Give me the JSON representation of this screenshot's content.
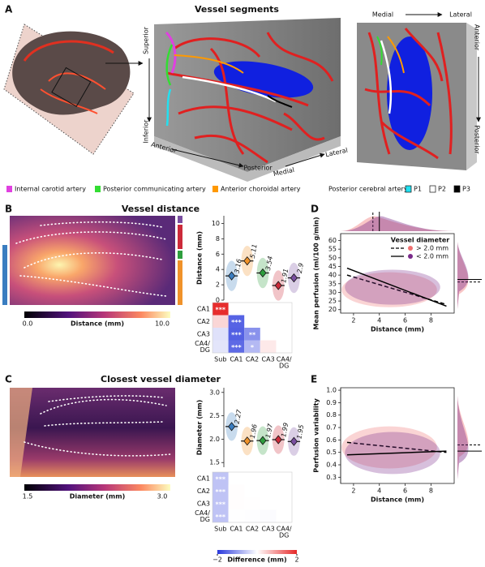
{
  "panel_a": {
    "label": "A",
    "title": "Vessel segments",
    "view1": {
      "superior": "Superior",
      "inferior": "Inferior",
      "anterior": "Anterior",
      "posterior": "Posterior",
      "medial": "Medial",
      "lateral": "Lateral"
    },
    "view2": {
      "medial": "Medial",
      "lateral": "Lateral",
      "anterior": "Anterior",
      "posterior": "Posterior"
    },
    "legend": [
      {
        "name": "Internal carotid artery",
        "color": "#e040e0"
      },
      {
        "name": "Posterior communicating artery",
        "color": "#33dd33"
      },
      {
        "name": "Anterior choroidal artery",
        "color": "#ff9900"
      }
    ],
    "pca_label": "Posterior cerebral artery:",
    "pca_segments": [
      {
        "name": "P1",
        "color": "#22e0f0"
      },
      {
        "name": "P2",
        "color": "#ffffff"
      },
      {
        "name": "P3",
        "color": "#000000"
      }
    ]
  },
  "panel_b": {
    "label": "B",
    "title": "Vessel distance",
    "colorbar": {
      "ticks": [
        "0.0",
        "10.0"
      ],
      "label": "Distance (mm)"
    }
  },
  "panel_c": {
    "label": "C",
    "title": "Closest vessel diameter",
    "colorbar": {
      "ticks": [
        "1.5",
        "3.0"
      ],
      "label": "Diameter (mm)"
    }
  },
  "panel_d": {
    "label": "D"
  },
  "panel_e": {
    "label": "E"
  },
  "chart_data": [
    {
      "type": "strip",
      "ylabel": "Distance (mm)",
      "values": [
        3.16,
        5.11,
        3.54,
        1.91,
        2.9
      ],
      "colors": [
        "#3a7dc0",
        "#f0922a",
        "#2e9e3e",
        "#cc2a3a",
        "#7a4ea0"
      ],
      "ylim": [
        0,
        11
      ],
      "yticks": [
        0,
        2,
        4,
        6,
        8,
        10
      ]
    },
    {
      "type": "matrix",
      "rows": [
        "CA1",
        "CA2",
        "CA3",
        [
          "CA4/",
          "DG"
        ]
      ],
      "columns": [
        "Sub",
        "CA1",
        "CA2",
        "CA3",
        [
          "CA4/",
          "DG"
        ]
      ],
      "values": [
        [
          1.95,
          null,
          null,
          null,
          null
        ],
        [
          0.38,
          -1.57,
          null,
          null,
          null
        ],
        [
          -0.3,
          -1.6,
          -1.1,
          null,
          null
        ],
        [
          -0.26,
          -1.5,
          -0.7,
          0.2,
          null
        ]
      ],
      "stars": [
        [
          "***",
          null,
          null,
          null,
          null
        ],
        [
          null,
          "***",
          null,
          null,
          null
        ],
        [
          null,
          "***",
          "**",
          null,
          null
        ],
        [
          null,
          "***",
          "*",
          null,
          null
        ]
      ],
      "clim": [
        -2,
        2
      ]
    },
    {
      "type": "strip",
      "ylabel": "Diameter (mm)",
      "values": [
        2.27,
        1.96,
        1.97,
        1.99,
        1.95
      ],
      "colors": [
        "#3a7dc0",
        "#f0922a",
        "#2e9e3e",
        "#cc2a3a",
        "#7a4ea0"
      ],
      "ylim": [
        1.4,
        3.1
      ],
      "yticks": [
        1.5,
        {
          "value": 2,
          "label": "2.0"
        },
        2.5,
        {
          "value": 3,
          "label": "3.0"
        }
      ]
    },
    {
      "type": "matrix",
      "rows": [
        "CA1",
        "CA2",
        "CA3",
        [
          "CA4/",
          "DG"
        ]
      ],
      "columns": [
        "Sub",
        "CA1",
        "CA2",
        "CA3",
        [
          "CA4/",
          "DG"
        ]
      ],
      "values": [
        [
          -0.6,
          null,
          null,
          null,
          null
        ],
        [
          -0.6,
          0.02,
          null,
          null,
          null
        ],
        [
          -0.6,
          0.02,
          0.01,
          null,
          null
        ],
        [
          -0.6,
          -0.01,
          -0.02,
          -0.04,
          null
        ]
      ],
      "stars": [
        [
          "***",
          null,
          null,
          null,
          null
        ],
        [
          "***",
          null,
          null,
          null,
          null
        ],
        [
          "***",
          null,
          null,
          null,
          null
        ],
        [
          "***",
          null,
          null,
          null,
          null
        ]
      ],
      "clim": [
        -2,
        2
      ],
      "colorbar": {
        "label": "Difference (mm)",
        "ticks": [
          {
            "value": -2,
            "label": "−2"
          },
          2
        ]
      }
    },
    {
      "type": "scatter",
      "ylabel": "Mean perfusion (ml/100 g/min)",
      "xlabel": "Distance (mm)",
      "xlim": [
        1,
        9.8
      ],
      "ylim": [
        18,
        64
      ],
      "xticks": [
        2,
        4,
        6,
        8
      ],
      "yticks": [
        20,
        25,
        30,
        35,
        40,
        45,
        50,
        55,
        60
      ],
      "legend_title": "Vessel diameter",
      "series": [
        {
          "name": "> 2.0 mm",
          "color": "#f07070",
          "line_style": "dashed",
          "fit_x": [
            1.5,
            9.2
          ],
          "fit_y": [
            40,
            23
          ],
          "mean_x": 3.5,
          "mean_y": 36
        },
        {
          "name": "< 2.0 mm",
          "color": "#7a2a8a",
          "line_style": "solid",
          "fit_x": [
            1.5,
            9.2
          ],
          "fit_y": [
            44,
            22
          ],
          "mean_x": 4.0,
          "mean_y": 37.5
        }
      ]
    },
    {
      "type": "scatter",
      "ylabel": "Perfusion variability",
      "xlabel": "Distance (mm)",
      "xlim": [
        1,
        9.8
      ],
      "ylim": [
        0.25,
        1.02
      ],
      "xticks": [
        2,
        4,
        6,
        8
      ],
      "yticks": [
        0.3,
        0.4,
        0.5,
        0.6,
        0.7,
        0.8,
        0.9,
        {
          "value": 1,
          "label": "1.0"
        }
      ],
      "series": [
        {
          "name": "> 2.0 mm",
          "color": "#f07070",
          "line_style": "dashed",
          "fit_x": [
            1.5,
            9.2
          ],
          "fit_y": [
            0.58,
            0.5
          ],
          "mean_y": 0.56
        },
        {
          "name": "< 2.0 mm",
          "color": "#7a2a8a",
          "line_style": "solid",
          "fit_x": [
            1.5,
            9.2
          ],
          "fit_y": [
            0.48,
            0.51
          ],
          "mean_y": 0.51
        }
      ]
    }
  ]
}
